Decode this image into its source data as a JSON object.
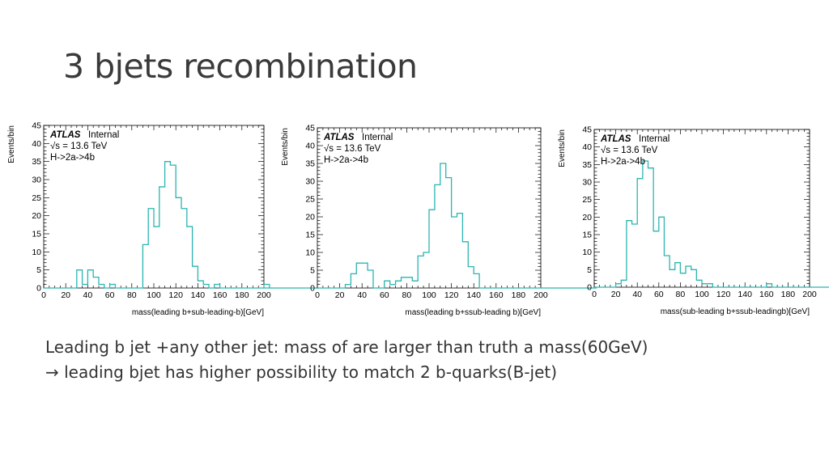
{
  "slide": {
    "title": "3 bjets recombination",
    "caption_line1": "Leading b jet +any other jet: mass of are larger than truth a mass(60GeV)",
    "caption_arrow": "→",
    "caption_line2": "leading bjet has higher possibility to match 2 b-quarks(B-jet)"
  },
  "colors": {
    "histogram": "#2bb5b0",
    "frame": "#000000"
  },
  "chart_data": [
    {
      "type": "histogram",
      "atlas_label": "ATLAS",
      "internal_label": "Internal",
      "energy_label": "√s = 13.6 TeV",
      "process_label": "H->2a->4b",
      "ylabel": "Events/bin",
      "xlabel": "mass(leading b+sub-leading-b)[GeV]",
      "xlim": [
        0,
        200
      ],
      "ylim": [
        0,
        45
      ],
      "xticks": [
        0,
        20,
        40,
        60,
        80,
        100,
        120,
        140,
        160,
        180,
        200
      ],
      "yticks": [
        0,
        5,
        10,
        15,
        20,
        25,
        30,
        35,
        40,
        45
      ],
      "bin_width": 5,
      "values": [
        0,
        0,
        0,
        0,
        0,
        0,
        5,
        1,
        5,
        3,
        1,
        0,
        1,
        0,
        0,
        0,
        0,
        0,
        12,
        22,
        17,
        28,
        35,
        34,
        25,
        22,
        17,
        6,
        2,
        1,
        0,
        1,
        0,
        0,
        0,
        0,
        0,
        0,
        0,
        0,
        1,
        0,
        0,
        0,
        0,
        0,
        0,
        0,
        0,
        0
      ]
    },
    {
      "type": "histogram",
      "atlas_label": "ATLAS",
      "internal_label": "Internal",
      "energy_label": "√s = 13.6 TeV",
      "process_label": "H->2a->4b",
      "ylabel": "Events/bin",
      "xlabel": "mass(leading b+ssub-leading b)[GeV]",
      "xlim": [
        0,
        200
      ],
      "ylim": [
        0,
        45
      ],
      "xticks": [
        0,
        20,
        40,
        60,
        80,
        100,
        120,
        140,
        160,
        180,
        200
      ],
      "yticks": [
        0,
        5,
        10,
        15,
        20,
        25,
        30,
        35,
        40,
        45
      ],
      "bin_width": 5,
      "values": [
        0,
        0,
        0,
        0,
        0,
        1,
        4,
        7,
        7,
        5,
        0,
        0,
        2,
        1,
        2,
        3,
        3,
        2,
        9,
        10,
        22,
        29,
        35,
        31,
        20,
        21,
        13,
        6,
        4,
        0,
        0,
        0,
        0,
        0,
        0,
        0,
        0,
        0,
        0,
        0,
        0,
        0,
        0,
        0,
        0,
        0,
        0,
        0,
        0,
        0
      ]
    },
    {
      "type": "histogram",
      "atlas_label": "ATLAS",
      "internal_label": "Internal",
      "energy_label": "√s = 13.6 TeV",
      "process_label": "H->2a->4b",
      "ylabel": "Events/bin",
      "xlabel": "mass(sub-leading b+ssub-leadingb)[GeV]",
      "xlim": [
        0,
        200
      ],
      "ylim": [
        0,
        45
      ],
      "xticks": [
        0,
        20,
        40,
        60,
        80,
        100,
        120,
        140,
        160,
        180,
        200
      ],
      "yticks": [
        0,
        5,
        10,
        15,
        20,
        25,
        30,
        35,
        40,
        45
      ],
      "bin_width": 5,
      "values": [
        0,
        0,
        0,
        0,
        1,
        2,
        19,
        18,
        31,
        36,
        34,
        16,
        20,
        9,
        5,
        7,
        4,
        6,
        5,
        2,
        1,
        1,
        0,
        0,
        0,
        0,
        0,
        0,
        0,
        0,
        0,
        0,
        1,
        0,
        0,
        0,
        0,
        0,
        0,
        0,
        0,
        0,
        0,
        0,
        0,
        0,
        0,
        0,
        0,
        0
      ]
    }
  ]
}
